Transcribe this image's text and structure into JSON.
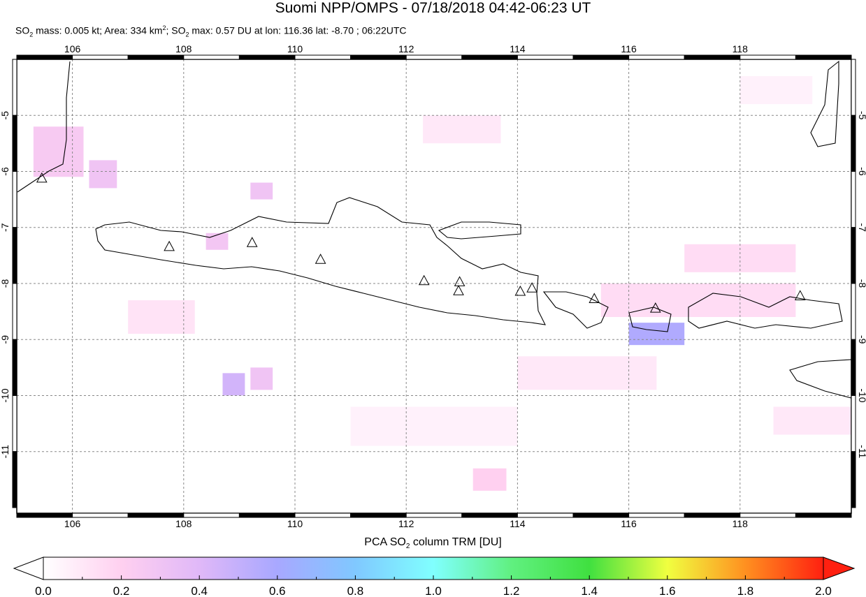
{
  "title": "Suomi NPP/OMPS - 07/18/2018 04:42-06:23 UT",
  "subtitle": {
    "mass": "SO",
    "mass_rest": " mass: 0.005 kt; Area: 334 km",
    "area_rest": "; SO",
    "max_rest": " max: 0.57 DU at lon: 116.36 lat: -8.70 ; 06:22UTC"
  },
  "map": {
    "lon_range": [
      105,
      120
    ],
    "lat_range": [
      -4,
      -12.1
    ],
    "lon_ticks": [
      "106",
      "108",
      "110",
      "112",
      "114",
      "116",
      "118"
    ],
    "lat_ticks": [
      "-5",
      "-6",
      "-7",
      "-8",
      "-9",
      "-10",
      "-11"
    ],
    "volcanoes": [
      [
        105.45,
        -6.13
      ],
      [
        107.74,
        -7.35
      ],
      [
        109.23,
        -7.28
      ],
      [
        110.46,
        -7.58
      ],
      [
        112.32,
        -7.96
      ],
      [
        112.96,
        -7.98
      ],
      [
        112.94,
        -8.14
      ],
      [
        114.05,
        -8.15
      ],
      [
        114.26,
        -8.09
      ],
      [
        115.38,
        -8.28
      ],
      [
        116.48,
        -8.45
      ],
      [
        119.08,
        -8.23
      ]
    ],
    "so2_cells": [
      {
        "lon": 105.3,
        "lat": -5.2,
        "w": 0.9,
        "h": 0.9,
        "v": 0.25
      },
      {
        "lon": 106.3,
        "lat": -5.8,
        "w": 0.5,
        "h": 0.5,
        "v": 0.3
      },
      {
        "lon": 109.2,
        "lat": -6.2,
        "w": 0.4,
        "h": 0.3,
        "v": 0.3
      },
      {
        "lon": 108.4,
        "lat": -7.1,
        "w": 0.4,
        "h": 0.3,
        "v": 0.28
      },
      {
        "lon": 108.7,
        "lat": -9.6,
        "w": 0.4,
        "h": 0.4,
        "v": 0.45
      },
      {
        "lon": 109.2,
        "lat": -9.5,
        "w": 0.4,
        "h": 0.4,
        "v": 0.3
      },
      {
        "lon": 116.0,
        "lat": -8.7,
        "w": 1.0,
        "h": 0.4,
        "v": 0.57
      },
      {
        "lon": 113.2,
        "lat": -11.3,
        "w": 0.6,
        "h": 0.4,
        "v": 0.2
      },
      {
        "lon": 115.5,
        "lat": -8.0,
        "w": 3.5,
        "h": 0.6,
        "v": 0.15
      },
      {
        "lon": 117.0,
        "lat": -7.3,
        "w": 2.0,
        "h": 0.5,
        "v": 0.15
      },
      {
        "lon": 112.3,
        "lat": -5.0,
        "w": 1.4,
        "h": 0.5,
        "v": 0.1
      },
      {
        "lon": 111.0,
        "lat": -10.2,
        "w": 3.0,
        "h": 0.7,
        "v": 0.06
      },
      {
        "lon": 118.6,
        "lat": -10.2,
        "w": 1.4,
        "h": 0.5,
        "v": 0.1
      },
      {
        "lon": 107.0,
        "lat": -8.3,
        "w": 1.2,
        "h": 0.6,
        "v": 0.12
      },
      {
        "lon": 114.0,
        "lat": -9.3,
        "w": 2.5,
        "h": 0.6,
        "v": 0.1
      },
      {
        "lon": 118.0,
        "lat": -4.3,
        "w": 1.3,
        "h": 0.5,
        "v": 0.06
      }
    ]
  },
  "colorbar": {
    "title_a": "PCA SO",
    "title_b": " column TRM [DU]",
    "ticks": [
      "0.0",
      "0.2",
      "0.4",
      "0.6",
      "0.8",
      "1.0",
      "1.2",
      "1.4",
      "1.6",
      "1.8",
      "2.0"
    ],
    "colors": [
      "#ffffff",
      "#ffd0f0",
      "#e0b8f8",
      "#a8a8ff",
      "#80c8ff",
      "#80ffff",
      "#60f080",
      "#40e040",
      "#f0ff40",
      "#ff9020",
      "#ff2010"
    ]
  }
}
